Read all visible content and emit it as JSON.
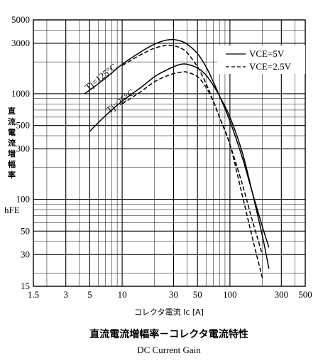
{
  "chart_data": {
    "type": "line",
    "x_scale": "log",
    "y_scale": "log",
    "xlim": [
      1.5,
      500
    ],
    "ylim": [
      15,
      5000
    ],
    "x_ticks": [
      1.5,
      3,
      5,
      10,
      30,
      50,
      100,
      300,
      500
    ],
    "x_tick_labels": [
      "1.5",
      "3",
      "5",
      "10",
      "30",
      "50",
      "100",
      "300",
      "500"
    ],
    "y_ticks": [
      15,
      30,
      50,
      100,
      300,
      500,
      1000,
      3000,
      5000
    ],
    "y_tick_labels": [
      "15",
      "30",
      "50",
      "100",
      "300",
      "500",
      "1000",
      "3000",
      "5000"
    ],
    "grid": true,
    "xlabel": "コレクタ電流 Ic [A]",
    "ylabel": "直流電流増幅率",
    "ylabel_symbol": "hFE",
    "title": "直流電流増幅率－コレクタ電流特性",
    "subtitle": "DC Current Gain",
    "legend": {
      "position": "top-right",
      "entries": [
        {
          "label": "VCE=5V",
          "style": "solid"
        },
        {
          "label": "VCE=2.5V",
          "style": "dashed"
        }
      ]
    },
    "annotations": [
      {
        "text": "Tj=125°C"
      },
      {
        "text": "Tj=25°C"
      }
    ],
    "series": [
      {
        "style": "solid",
        "x": [
          4.5,
          7,
          10,
          15,
          20,
          25,
          30,
          35,
          40,
          50,
          60,
          70,
          80,
          100,
          130,
          160,
          200,
          230
        ],
        "y": [
          1000,
          1400,
          1900,
          2500,
          2950,
          3200,
          3250,
          3150,
          2950,
          2400,
          1800,
          1300,
          950,
          550,
          250,
          120,
          55,
          35
        ]
      },
      {
        "style": "dashed",
        "x": [
          10,
          15,
          20,
          25,
          30,
          35,
          40,
          50,
          60,
          70,
          80,
          100,
          130,
          160,
          200
        ],
        "y": [
          1850,
          2350,
          2700,
          2850,
          2850,
          2700,
          2450,
          1800,
          1250,
          850,
          600,
          330,
          140,
          65,
          30
        ]
      },
      {
        "style": "solid",
        "x": [
          5,
          7,
          10,
          15,
          20,
          25,
          30,
          35,
          40,
          50,
          60,
          70,
          80,
          100,
          130,
          160,
          200,
          230
        ],
        "y": [
          440,
          620,
          850,
          1150,
          1450,
          1650,
          1800,
          1900,
          1900,
          1750,
          1500,
          1200,
          950,
          600,
          280,
          120,
          45,
          22
        ]
      },
      {
        "style": "dashed",
        "x": [
          10,
          15,
          20,
          25,
          30,
          35,
          40,
          50,
          60,
          70,
          80,
          100,
          130,
          160,
          200
        ],
        "y": [
          800,
          1050,
          1300,
          1450,
          1550,
          1600,
          1600,
          1450,
          1150,
          850,
          600,
          330,
          110,
          45,
          18
        ]
      }
    ]
  }
}
